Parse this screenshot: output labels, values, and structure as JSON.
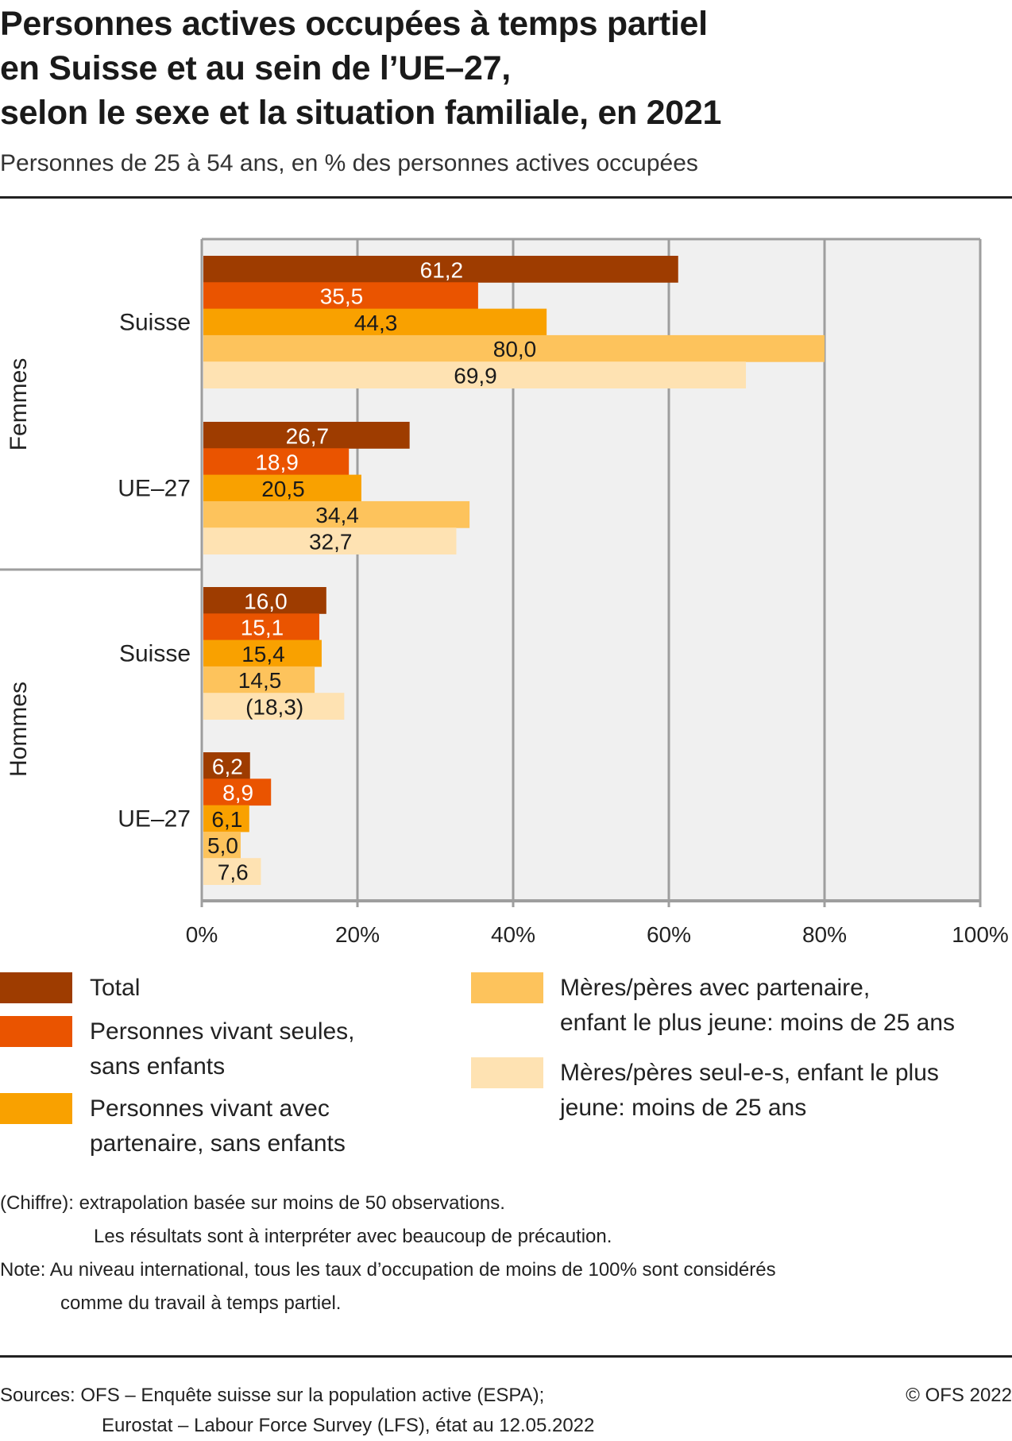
{
  "header": {
    "title_lines": [
      "Personnes actives occupées à temps partiel",
      "en Suisse et au sein de l’UE–27,",
      "selon le sexe et la situation familiale, en 2021"
    ],
    "subtitle": "Personnes de 25 à 54 ans, en % des personnes actives occupées"
  },
  "chart_data": {
    "type": "bar",
    "orientation": "horizontal",
    "title": "Personnes actives occupées à temps partiel en Suisse et au sein de l’UE–27, selon le sexe et la situation familiale, en 2021",
    "subtitle": "Personnes de 25 à 54 ans, en % des personnes actives occupées",
    "xlabel": "",
    "ylabel": "",
    "xlim": [
      0,
      100
    ],
    "x_ticks": [
      "0%",
      "20%",
      "40%",
      "60%",
      "80%",
      "100%"
    ],
    "grid": true,
    "legend_position": "bottom",
    "groups": [
      {
        "name": "Femmes",
        "categories": [
          "Suisse",
          "UE–27"
        ]
      },
      {
        "name": "Hommes",
        "categories": [
          "Suisse",
          "UE–27"
        ]
      }
    ],
    "categories": [
      "Femmes – Suisse",
      "Femmes – UE–27",
      "Hommes – Suisse",
      "Hommes – UE–27"
    ],
    "category_labels": [
      "Suisse",
      "UE–27",
      "Suisse",
      "UE–27"
    ],
    "series": [
      {
        "name": "Total",
        "color": "#9e3c00",
        "label_color": "#ffffff",
        "values": [
          61.2,
          26.7,
          16.0,
          6.2
        ],
        "labels": [
          "61,2",
          "26,7",
          "16,0",
          "6,2"
        ]
      },
      {
        "name": "Personnes vivant seules, sans enfants",
        "color": "#ea5400",
        "label_color": "#ffffff",
        "values": [
          35.5,
          18.9,
          15.1,
          8.9
        ],
        "labels": [
          "35,5",
          "18,9",
          "15,1",
          "8,9"
        ]
      },
      {
        "name": "Personnes vivant avec partenaire, sans enfants",
        "color": "#f9a100",
        "label_color": "#1a1a1a",
        "values": [
          44.3,
          20.5,
          15.4,
          6.1
        ],
        "labels": [
          "44,3",
          "20,5",
          "15,4",
          "6,1"
        ]
      },
      {
        "name": "Mères/pères avec partenaire, enfant le plus jeune: moins de 25 ans",
        "color": "#fdc35c",
        "label_color": "#1a1a1a",
        "values": [
          80.0,
          34.4,
          14.5,
          5.0
        ],
        "labels": [
          "80,0",
          "34,4",
          "14,5",
          "5,0"
        ]
      },
      {
        "name": "Mères/pères seul-e-s, enfant le plus jeune: moins de 25 ans",
        "color": "#fee2b2",
        "label_color": "#1a1a1a",
        "values": [
          69.9,
          32.7,
          18.3,
          7.6
        ],
        "labels": [
          "69,9",
          "32,7",
          "(18,3)",
          "7,6"
        ]
      }
    ]
  },
  "legend": {
    "items": [
      {
        "lines": [
          "Total"
        ],
        "color": "#9e3c00"
      },
      {
        "lines": [
          "Personnes vivant seules,",
          "sans enfants"
        ],
        "color": "#ea5400"
      },
      {
        "lines": [
          "Personnes vivant avec",
          "partenaire, sans enfants"
        ],
        "color": "#f9a100"
      },
      {
        "lines": [
          "Mères/pères avec partenaire,",
          "enfant le plus jeune: moins de 25 ans"
        ],
        "color": "#fdc35c"
      },
      {
        "lines": [
          "Mères/pères seul-e-s, enfant le plus",
          "jeune: moins de 25 ans"
        ],
        "color": "#fee2b2"
      }
    ]
  },
  "notes": {
    "line1": "(Chiffre): extrapolation basée sur moins de 50 observations.",
    "line2": "Les résultats sont à interpréter avec beaucoup de précaution.",
    "line3": "Note: Au niveau international, tous les taux d’occupation de moins de 100% sont considérés",
    "line4": "comme du travail à temps partiel."
  },
  "footer": {
    "sources_line1": "Sources: OFS – Enquête suisse sur la population active (ESPA);",
    "sources_line2": "Eurostat – Labour Force Survey (LFS), état au 12.05.2022",
    "copyright": "© OFS 2022"
  }
}
